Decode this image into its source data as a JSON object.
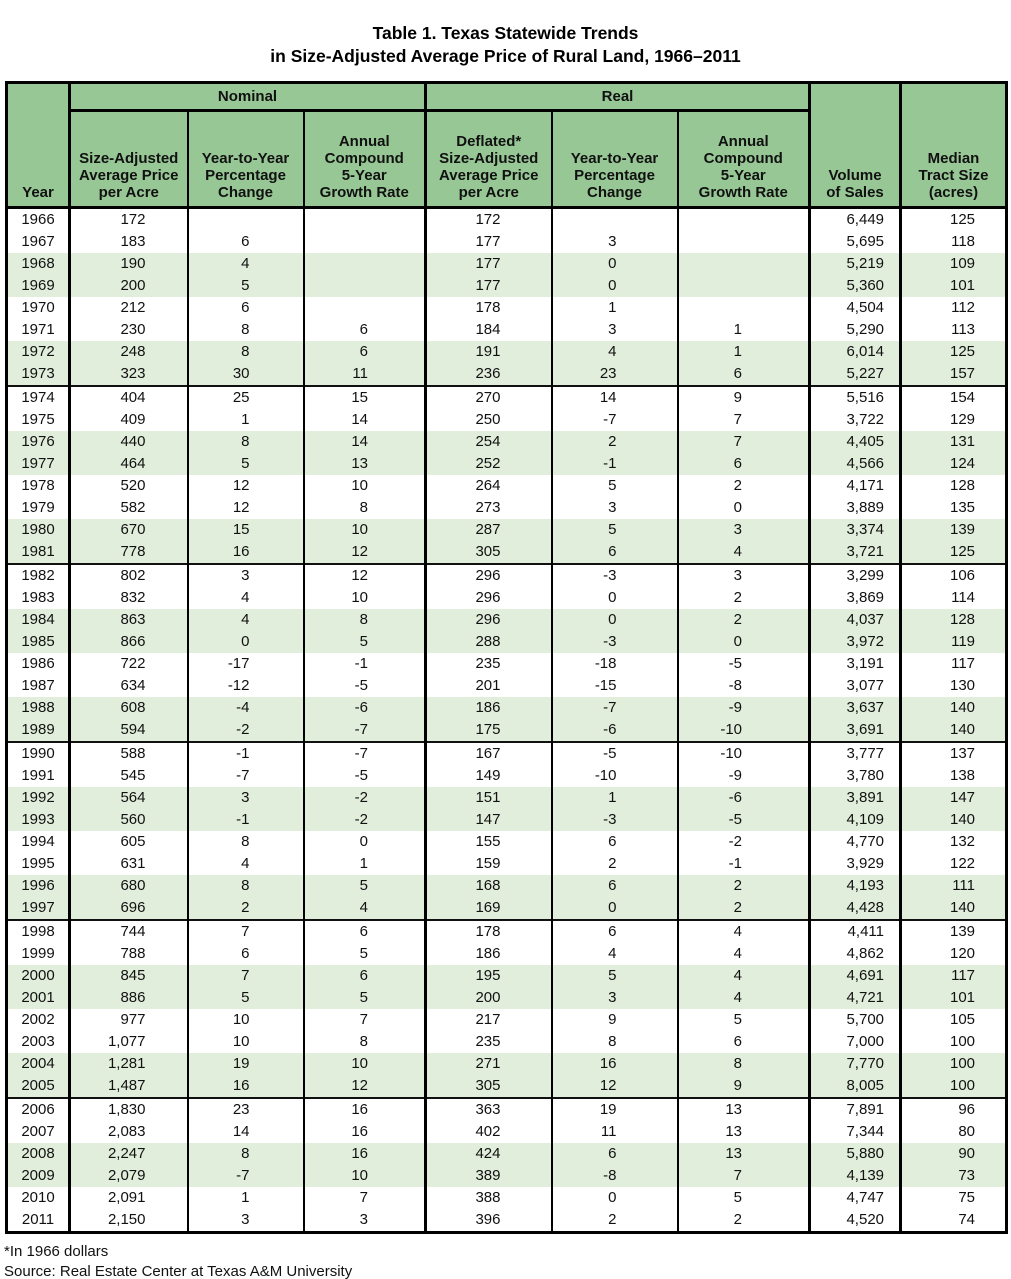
{
  "title": {
    "line1": "Table 1. Texas Statewide Trends",
    "line2": "in Size-Adjusted Average Price of Rural Land, 1966–2011"
  },
  "headers": {
    "year": "Year",
    "nominal": "Nominal",
    "real": "Real",
    "n_price": "Size-Adjusted\nAverage Price\nper Acre",
    "n_yty": "Year-to-Year\nPercentage\nChange",
    "n_growth": "Annual\nCompound\n5-Year\nGrowth Rate",
    "r_price": "Deflated*\nSize-Adjusted\nAverage Price\nper Acre",
    "r_yty": "Year-to-Year\nPercentage\nChange",
    "r_growth": "Annual\nCompound\n5-Year\nGrowth Rate",
    "volume": "Volume\nof Sales",
    "median": "Median\nTract Size\n(acres)"
  },
  "chart_data": {
    "type": "table",
    "title": "Table 1. Texas Statewide Trends in Size-Adjusted Average Price of Rural Land, 1966–2011",
    "column_groups": [
      {
        "label": "Nominal",
        "spans_columns": [
          1,
          2,
          3
        ]
      },
      {
        "label": "Real",
        "spans_columns": [
          4,
          5,
          6
        ]
      }
    ],
    "columns": [
      "Year",
      "Size-Adjusted Average Price per Acre (Nominal)",
      "Year-to-Year Percentage Change (Nominal)",
      "Annual Compound 5-Year Growth Rate (Nominal)",
      "Deflated* Size-Adjusted Average Price per Acre (Real)",
      "Year-to-Year Percentage Change (Real)",
      "Annual Compound 5-Year Growth Rate (Real)",
      "Volume of Sales",
      "Median Tract Size (acres)"
    ],
    "rows": [
      [
        "1966",
        "172",
        "",
        "",
        "172",
        "",
        "",
        "6,449",
        "125"
      ],
      [
        "1967",
        "183",
        "6",
        "",
        "177",
        "3",
        "",
        "5,695",
        "118"
      ],
      [
        "1968",
        "190",
        "4",
        "",
        "177",
        "0",
        "",
        "5,219",
        "109"
      ],
      [
        "1969",
        "200",
        "5",
        "",
        "177",
        "0",
        "",
        "5,360",
        "101"
      ],
      [
        "1970",
        "212",
        "6",
        "",
        "178",
        "1",
        "",
        "4,504",
        "112"
      ],
      [
        "1971",
        "230",
        "8",
        "6",
        "184",
        "3",
        "1",
        "5,290",
        "113"
      ],
      [
        "1972",
        "248",
        "8",
        "6",
        "191",
        "4",
        "1",
        "6,014",
        "125"
      ],
      [
        "1973",
        "323",
        "30",
        "11",
        "236",
        "23",
        "6",
        "5,227",
        "157"
      ],
      [
        "1974",
        "404",
        "25",
        "15",
        "270",
        "14",
        "9",
        "5,516",
        "154"
      ],
      [
        "1975",
        "409",
        "1",
        "14",
        "250",
        "-7",
        "7",
        "3,722",
        "129"
      ],
      [
        "1976",
        "440",
        "8",
        "14",
        "254",
        "2",
        "7",
        "4,405",
        "131"
      ],
      [
        "1977",
        "464",
        "5",
        "13",
        "252",
        "-1",
        "6",
        "4,566",
        "124"
      ],
      [
        "1978",
        "520",
        "12",
        "10",
        "264",
        "5",
        "2",
        "4,171",
        "128"
      ],
      [
        "1979",
        "582",
        "12",
        "8",
        "273",
        "3",
        "0",
        "3,889",
        "135"
      ],
      [
        "1980",
        "670",
        "15",
        "10",
        "287",
        "5",
        "3",
        "3,374",
        "139"
      ],
      [
        "1981",
        "778",
        "16",
        "12",
        "305",
        "6",
        "4",
        "3,721",
        "125"
      ],
      [
        "1982",
        "802",
        "3",
        "12",
        "296",
        "-3",
        "3",
        "3,299",
        "106"
      ],
      [
        "1983",
        "832",
        "4",
        "10",
        "296",
        "0",
        "2",
        "3,869",
        "114"
      ],
      [
        "1984",
        "863",
        "4",
        "8",
        "296",
        "0",
        "2",
        "4,037",
        "128"
      ],
      [
        "1985",
        "866",
        "0",
        "5",
        "288",
        "-3",
        "0",
        "3,972",
        "119"
      ],
      [
        "1986",
        "722",
        "-17",
        "-1",
        "235",
        "-18",
        "-5",
        "3,191",
        "117"
      ],
      [
        "1987",
        "634",
        "-12",
        "-5",
        "201",
        "-15",
        "-8",
        "3,077",
        "130"
      ],
      [
        "1988",
        "608",
        "-4",
        "-6",
        "186",
        "-7",
        "-9",
        "3,637",
        "140"
      ],
      [
        "1989",
        "594",
        "-2",
        "-7",
        "175",
        "-6",
        "-10",
        "3,691",
        "140"
      ],
      [
        "1990",
        "588",
        "-1",
        "-7",
        "167",
        "-5",
        "-10",
        "3,777",
        "137"
      ],
      [
        "1991",
        "545",
        "-7",
        "-5",
        "149",
        "-10",
        "-9",
        "3,780",
        "138"
      ],
      [
        "1992",
        "564",
        "3",
        "-2",
        "151",
        "1",
        "-6",
        "3,891",
        "147"
      ],
      [
        "1993",
        "560",
        "-1",
        "-2",
        "147",
        "-3",
        "-5",
        "4,109",
        "140"
      ],
      [
        "1994",
        "605",
        "8",
        "0",
        "155",
        "6",
        "-2",
        "4,770",
        "132"
      ],
      [
        "1995",
        "631",
        "4",
        "1",
        "159",
        "2",
        "-1",
        "3,929",
        "122"
      ],
      [
        "1996",
        "680",
        "8",
        "5",
        "168",
        "6",
        "2",
        "4,193",
        "111"
      ],
      [
        "1997",
        "696",
        "2",
        "4",
        "169",
        "0",
        "2",
        "4,428",
        "140"
      ],
      [
        "1998",
        "744",
        "7",
        "6",
        "178",
        "6",
        "4",
        "4,411",
        "139"
      ],
      [
        "1999",
        "788",
        "6",
        "5",
        "186",
        "4",
        "4",
        "4,862",
        "120"
      ],
      [
        "2000",
        "845",
        "7",
        "6",
        "195",
        "5",
        "4",
        "4,691",
        "117"
      ],
      [
        "2001",
        "886",
        "5",
        "5",
        "200",
        "3",
        "4",
        "4,721",
        "101"
      ],
      [
        "2002",
        "977",
        "10",
        "7",
        "217",
        "9",
        "5",
        "5,700",
        "105"
      ],
      [
        "2003",
        "1,077",
        "10",
        "8",
        "235",
        "8",
        "6",
        "7,000",
        "100"
      ],
      [
        "2004",
        "1,281",
        "19",
        "10",
        "271",
        "16",
        "8",
        "7,770",
        "100"
      ],
      [
        "2005",
        "1,487",
        "16",
        "12",
        "305",
        "12",
        "9",
        "8,005",
        "100"
      ],
      [
        "2006",
        "1,830",
        "23",
        "16",
        "363",
        "19",
        "13",
        "7,891",
        "96"
      ],
      [
        "2007",
        "2,083",
        "14",
        "16",
        "402",
        "11",
        "13",
        "7,344",
        "80"
      ],
      [
        "2008",
        "2,247",
        "8",
        "16",
        "424",
        "6",
        "13",
        "5,880",
        "90"
      ],
      [
        "2009",
        "2,079",
        "-7",
        "10",
        "389",
        "-8",
        "7",
        "4,139",
        "73"
      ],
      [
        "2010",
        "2,091",
        "1",
        "7",
        "388",
        "0",
        "5",
        "4,747",
        "75"
      ],
      [
        "2011",
        "2,150",
        "3",
        "3",
        "396",
        "2",
        "2",
        "4,520",
        "74"
      ]
    ]
  },
  "footnotes": [
    "*In 1966 dollars",
    "Source: Real Estate Center at Texas A&M University"
  ],
  "colors": {
    "header_green": "#97c795",
    "band_green": "#e2eedc",
    "border": "#000000",
    "text": "#111111"
  }
}
